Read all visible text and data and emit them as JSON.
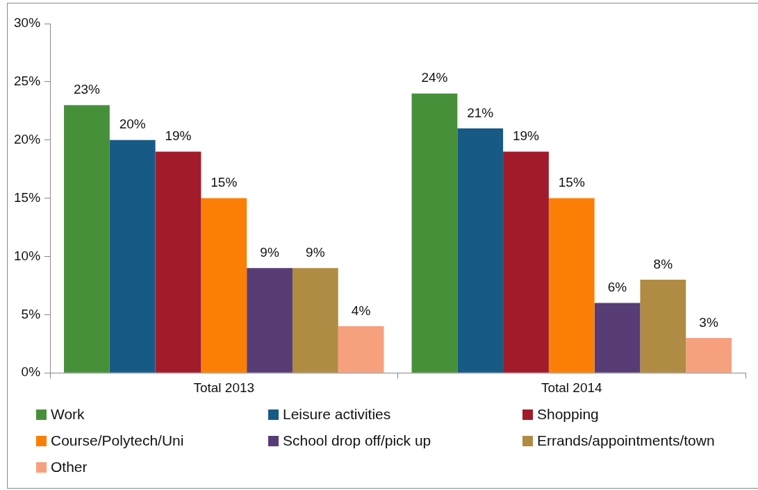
{
  "chart_data": {
    "type": "bar",
    "categories": [
      "Total 2013",
      "Total 2014"
    ],
    "series": [
      {
        "name": "Work",
        "color": "#47903a",
        "values": [
          23,
          24
        ],
        "value_labels": [
          "23%",
          "24%"
        ]
      },
      {
        "name": "Leisure activities",
        "color": "#175a85",
        "values": [
          20,
          21
        ],
        "value_labels": [
          "20%",
          "21%"
        ]
      },
      {
        "name": "Shopping",
        "color": "#a11b2b",
        "values": [
          19,
          19
        ],
        "value_labels": [
          "19%",
          "19%"
        ]
      },
      {
        "name": "Course/Polytech/Uni",
        "color": "#fb7f05",
        "values": [
          15,
          15
        ],
        "value_labels": [
          "15%",
          "15%"
        ]
      },
      {
        "name": "School drop off/pick up",
        "color": "#573c76",
        "values": [
          9,
          6
        ],
        "value_labels": [
          "9%",
          "6%"
        ]
      },
      {
        "name": "Errands/appointments/town",
        "color": "#b08b43",
        "values": [
          9,
          8
        ],
        "value_labels": [
          "9%",
          "8%"
        ]
      },
      {
        "name": "Other",
        "color": "#f7a07e",
        "values": [
          4,
          3
        ],
        "value_labels": [
          "4%",
          "3%"
        ]
      }
    ],
    "ylim": [
      0,
      30
    ],
    "yticks": [
      {
        "value": 0,
        "label": "0%"
      },
      {
        "value": 5,
        "label": "5%"
      },
      {
        "value": 10,
        "label": "10%"
      },
      {
        "value": 15,
        "label": "15%"
      },
      {
        "value": 20,
        "label": "20%"
      },
      {
        "value": 25,
        "label": "25%"
      },
      {
        "value": 30,
        "label": "30%"
      }
    ],
    "grid": false,
    "legend": "bottom"
  }
}
